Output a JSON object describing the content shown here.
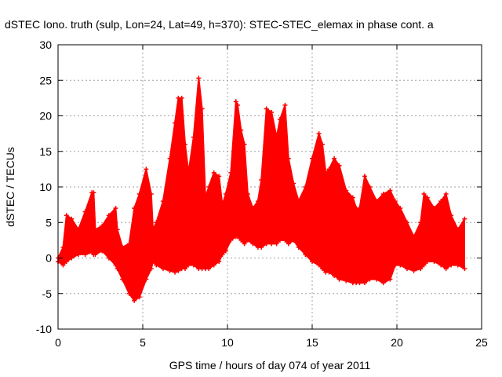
{
  "chart_data": {
    "type": "line",
    "title": "dSTEC Iono. truth (sulp, Lon=24, Lat=49, h=370): STEC-STEC_elemax in phase cont. a",
    "xlabel": "GPS time / hours of day 074 of year 2011",
    "ylabel": "dSTEC  / TECUs",
    "xlim": [
      0,
      25
    ],
    "ylim": [
      -10,
      30
    ],
    "xticks": [
      0,
      5,
      10,
      15,
      20,
      25
    ],
    "yticks": [
      -10,
      -5,
      0,
      5,
      10,
      15,
      20,
      25,
      30
    ],
    "grid": true,
    "marker": "plus",
    "colors": {
      "series": "#ff0000",
      "grid": "#a0a0a0",
      "axes": "#000000"
    },
    "series": [
      {
        "x": [
          0.0,
          0.3,
          0.5,
          0.8,
          1.2,
          1.6,
          2.0,
          2.1,
          2.2,
          2.6,
          3.0,
          3.4,
          3.5,
          3.8,
          4.2,
          4.5,
          4.8,
          5.2,
          5.5,
          5.6,
          5.8,
          6.2,
          6.6,
          6.9,
          7.1,
          7.3,
          7.5,
          7.7,
          8.0,
          8.3,
          8.5,
          8.7,
          8.9,
          9.2,
          9.5,
          9.7,
          9.9,
          10.2,
          10.5,
          10.6,
          10.8,
          11.0,
          11.2,
          11.5,
          11.8,
          12.0,
          12.3,
          12.6,
          12.9,
          13.1,
          13.4,
          13.6,
          13.9,
          14.2,
          14.6,
          15.0,
          15.4,
          15.6,
          15.8,
          16.0,
          16.3,
          16.6,
          17.0,
          17.4,
          17.6,
          17.8,
          18.1,
          18.4,
          18.8,
          19.2,
          19.6,
          19.9,
          20.2,
          20.6,
          21.0,
          21.4,
          21.6,
          21.8,
          22.2,
          22.6,
          22.9,
          23.2,
          23.6,
          24.0
        ],
        "upper": [
          0.0,
          1.5,
          6.0,
          5.5,
          4.0,
          6.5,
          9.2,
          9.2,
          4.0,
          4.5,
          6.0,
          7.0,
          4.0,
          1.5,
          2.0,
          7.0,
          9.0,
          12.5,
          9.0,
          4.0,
          5.0,
          8.0,
          14.0,
          19.0,
          22.5,
          22.5,
          16.0,
          12.0,
          17.0,
          25.3,
          21.0,
          8.5,
          10.0,
          12.0,
          11.5,
          7.5,
          9.0,
          12.0,
          22.0,
          21.5,
          18.0,
          16.0,
          9.0,
          7.0,
          8.0,
          11.0,
          21.0,
          20.5,
          17.0,
          19.5,
          21.5,
          14.0,
          10.5,
          8.0,
          10.0,
          14.0,
          17.5,
          16.0,
          12.0,
          12.5,
          14.0,
          13.0,
          9.5,
          8.5,
          7.0,
          7.0,
          11.5,
          10.0,
          8.0,
          9.0,
          9.5,
          8.0,
          7.0,
          5.0,
          3.0,
          5.0,
          9.0,
          8.5,
          7.0,
          8.0,
          9.0,
          6.0,
          4.0,
          5.5
        ],
        "lower": [
          -0.5,
          -1.0,
          -0.5,
          0.0,
          0.5,
          0.5,
          0.8,
          0.5,
          0.5,
          1.0,
          0.0,
          -1.0,
          -1.5,
          -3.0,
          -5.0,
          -6.0,
          -5.5,
          -3.0,
          -1.5,
          -0.5,
          -1.0,
          -1.5,
          -1.8,
          -2.0,
          -1.8,
          -1.5,
          -1.5,
          -1.0,
          -1.0,
          -1.5,
          -1.5,
          -1.5,
          -1.5,
          -1.0,
          -0.5,
          0.5,
          1.0,
          2.5,
          3.0,
          3.0,
          2.5,
          2.0,
          2.5,
          2.0,
          1.5,
          1.5,
          2.0,
          2.0,
          2.0,
          2.5,
          2.5,
          2.0,
          2.5,
          1.5,
          0.5,
          -0.5,
          -1.0,
          -1.5,
          -2.0,
          -2.0,
          -2.5,
          -3.0,
          -3.2,
          -3.5,
          -3.5,
          -3.5,
          -3.5,
          -3.0,
          -3.0,
          -3.5,
          -3.0,
          -1.0,
          -1.0,
          -1.5,
          -1.8,
          -1.5,
          -1.0,
          -0.5,
          -0.5,
          -1.0,
          -1.5,
          -1.0,
          -1.0,
          -1.5
        ]
      }
    ]
  }
}
